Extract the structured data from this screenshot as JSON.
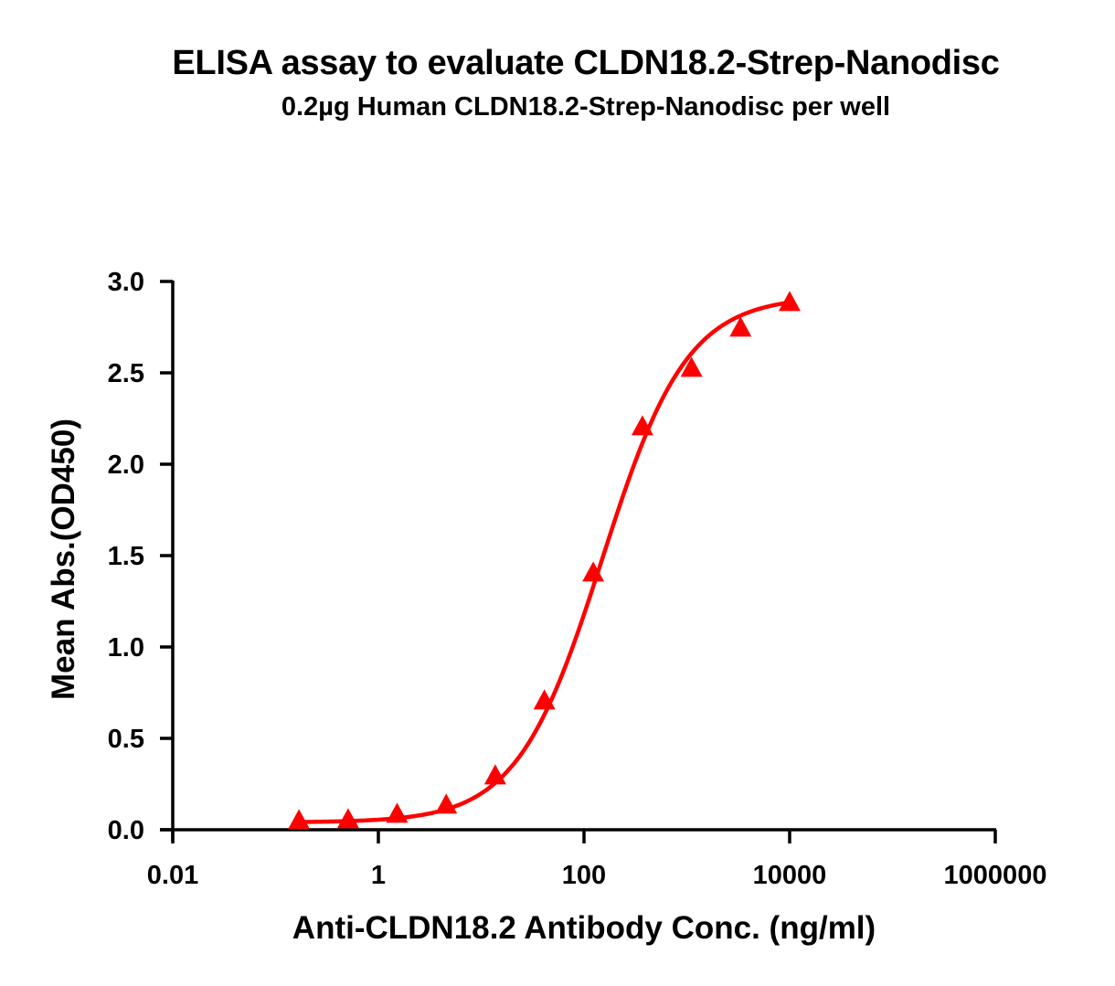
{
  "chart_data": {
    "type": "scatter",
    "title": "ELISA assay to evaluate CLDN18.2-Strep-Nanodisc",
    "subtitle": "0.2µg Human CLDN18.2-Strep-Nanodisc per well",
    "xlabel": "Anti-CLDN18.2 Antibody Conc. (ng/ml)",
    "ylabel": "Mean Abs.(OD450)",
    "xscale": "log",
    "xlim": [
      0.01,
      1000000
    ],
    "ylim": [
      0.0,
      3.0
    ],
    "x_ticks": [
      "0.01",
      "1",
      "100",
      "10000",
      "1000000"
    ],
    "x_tick_values": [
      0.01,
      1,
      100,
      10000,
      1000000
    ],
    "y_ticks": [
      "0.0",
      "0.5",
      "1.0",
      "1.5",
      "2.0",
      "2.5",
      "3.0"
    ],
    "y_tick_values": [
      0.0,
      0.5,
      1.0,
      1.5,
      2.0,
      2.5,
      3.0
    ],
    "grid": false,
    "legend": null,
    "series": [
      {
        "name": "Anti-CLDN18.2 Antibody",
        "color": "#ff0000",
        "marker": "triangle",
        "fit": "4-parameter logistic",
        "x": [
          0.169,
          0.508,
          1.52,
          4.57,
          13.7,
          41.2,
          123,
          370,
          1111,
          3333,
          10000
        ],
        "y": [
          0.045,
          0.05,
          0.08,
          0.13,
          0.29,
          0.7,
          1.4,
          2.2,
          2.52,
          2.74,
          2.88
        ]
      }
    ]
  }
}
